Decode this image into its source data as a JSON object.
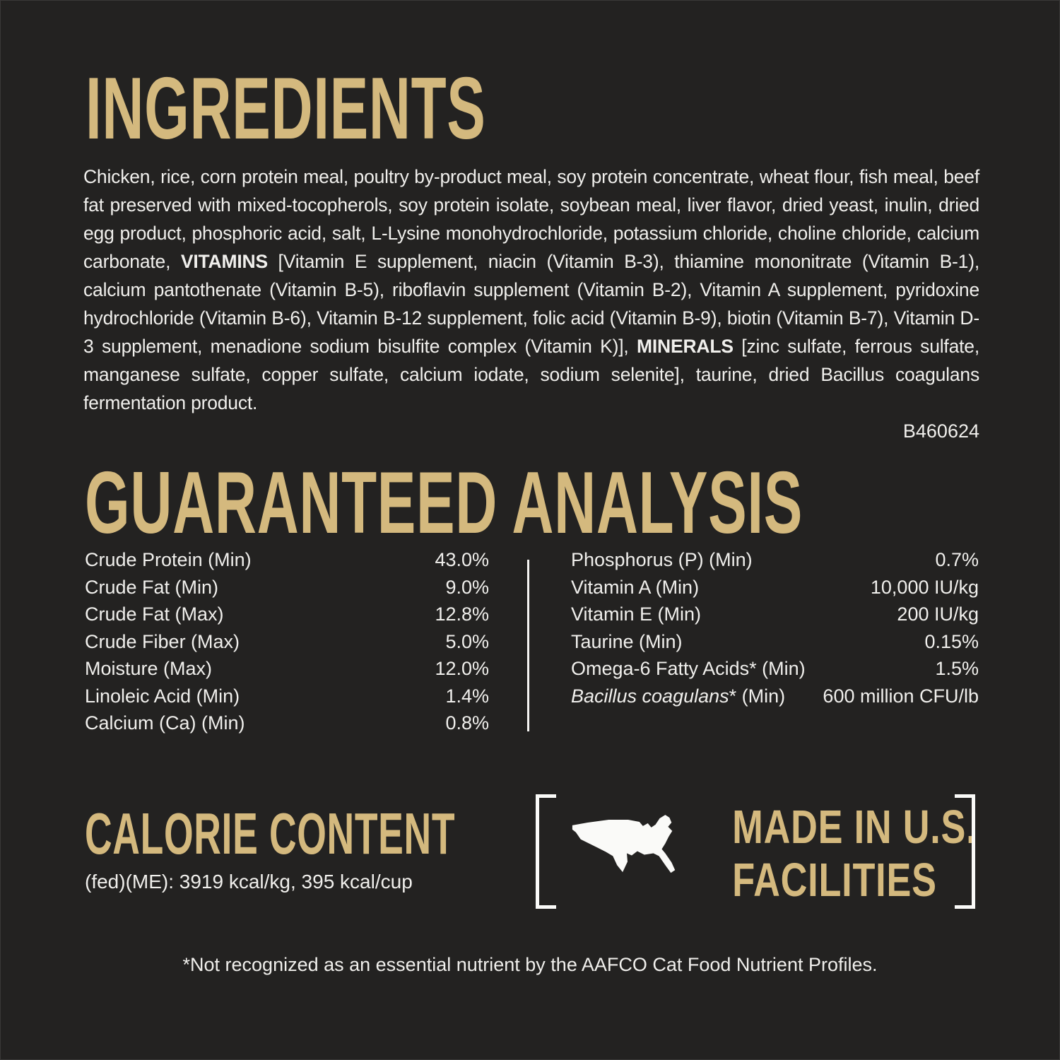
{
  "colors": {
    "background": "#232221",
    "gold_accent": "#d4b97e",
    "body_text": "#f0efec",
    "divider_white": "#f5f4f2"
  },
  "ingredients": {
    "title": "INGREDIENTS",
    "segments": [
      {
        "bold": false,
        "text": "Chicken, rice, corn protein meal, poultry by-product meal, soy protein concentrate, wheat flour, fish meal, beef fat preserved with mixed-tocopherols, soy protein isolate, soybean meal, liver flavor, dried yeast, inulin, dried egg product, phosphoric acid, salt, L-Lysine monohydrochloride, potassium chloride, choline chloride, calcium carbonate, "
      },
      {
        "bold": true,
        "text": "VITAMINS"
      },
      {
        "bold": false,
        "text": " [Vitamin E supplement, niacin (Vitamin B-3), thiamine mononitrate (Vitamin B-1), calcium pantothenate (Vitamin B-5), riboflavin supplement (Vitamin B-2), Vitamin A supplement, pyridoxine hydrochloride (Vitamin B-6), Vitamin B-12 supplement, folic acid (Vitamin B-9), biotin (Vitamin B-7), Vitamin D-3 supplement, menadione sodium bisulfite complex (Vitamin K)], "
      },
      {
        "bold": true,
        "text": "MINERALS"
      },
      {
        "bold": false,
        "text": " [zinc sulfate, ferrous sulfate, manganese sulfate, copper sulfate, calcium iodate, sodium selenite], taurine, dried Bacillus coagulans fermentation product."
      }
    ],
    "batch_code": "B460624"
  },
  "guaranteed_analysis": {
    "title": "GUARANTEED ANALYSIS",
    "left": [
      {
        "label": "Crude Protein (Min)",
        "value": "43.0%"
      },
      {
        "label": "Crude Fat (Min)",
        "value": "9.0%"
      },
      {
        "label": "Crude Fat (Max)",
        "value": "12.8%"
      },
      {
        "label": "Crude Fiber (Max)",
        "value": "5.0%"
      },
      {
        "label": "Moisture (Max)",
        "value": "12.0%"
      },
      {
        "label": "Linoleic Acid (Min)",
        "value": "1.4%"
      },
      {
        "label": "Calcium (Ca) (Min)",
        "value": "0.8%"
      }
    ],
    "right": [
      {
        "label": "Phosphorus (P) (Min)",
        "value": "0.7%"
      },
      {
        "label": "Vitamin A (Min)",
        "value": "10,000 IU/kg"
      },
      {
        "label": "Vitamin E (Min)",
        "value": "200 IU/kg"
      },
      {
        "label": "Taurine (Min)",
        "value": "0.15%"
      },
      {
        "label": "Omega-6 Fatty Acids* (Min)",
        "value": "1.5%"
      },
      {
        "label_italic": "Bacillus coagulans",
        "label": "* (Min)",
        "value": "600 million CFU/lb"
      }
    ]
  },
  "calorie_content": {
    "title": "CALORIE CONTENT",
    "line": "(fed)(ME): 3919 kcal/kg, 395 kcal/cup"
  },
  "made_in_us": {
    "line1": "MADE IN U.S.",
    "line2": "FACILITIES",
    "icon": "usa-map-icon"
  },
  "footnote": "*Not recognized as an essential nutrient by the AAFCO Cat Food Nutrient Profiles."
}
